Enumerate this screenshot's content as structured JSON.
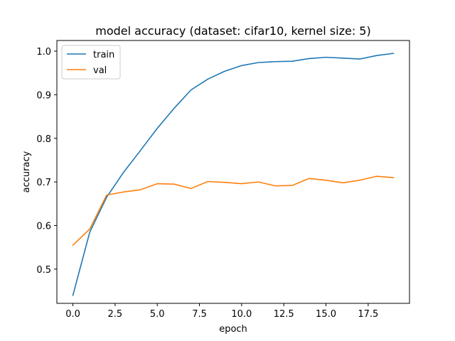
{
  "chart_data": {
    "type": "line",
    "title": "model accuracy (dataset: cifar10, kernel size: 5)",
    "xlabel": "epoch",
    "ylabel": "accuracy",
    "xlim": [
      -0.95,
      19.95
    ],
    "ylim": [
      0.4215,
      1.0245
    ],
    "xticks": [
      0.0,
      2.5,
      5.0,
      7.5,
      10.0,
      12.5,
      15.0,
      17.5
    ],
    "xtick_labels": [
      "0.0",
      "2.5",
      "5.0",
      "7.5",
      "10.0",
      "12.5",
      "15.0",
      "17.5"
    ],
    "yticks": [
      0.5,
      0.6,
      0.7,
      0.8,
      0.9,
      1.0
    ],
    "ytick_labels": [
      "0.5",
      "0.6",
      "0.7",
      "0.8",
      "0.9",
      "1.0"
    ],
    "grid": false,
    "legend_position": "top-left",
    "x": [
      0,
      1,
      2,
      3,
      4,
      5,
      6,
      7,
      8,
      9,
      10,
      11,
      12,
      13,
      14,
      15,
      16,
      17,
      18,
      19
    ],
    "series": [
      {
        "name": "train",
        "color": "#1f77b4",
        "values": [
          0.44,
          0.585,
          0.665,
          0.722,
          0.772,
          0.823,
          0.869,
          0.911,
          0.936,
          0.954,
          0.967,
          0.974,
          0.976,
          0.977,
          0.983,
          0.986,
          0.984,
          0.982,
          0.99,
          0.995
        ]
      },
      {
        "name": "val",
        "color": "#ff7f0e",
        "values": [
          0.555,
          0.592,
          0.67,
          0.677,
          0.682,
          0.696,
          0.695,
          0.685,
          0.701,
          0.699,
          0.696,
          0.7,
          0.691,
          0.692,
          0.708,
          0.704,
          0.698,
          0.704,
          0.713,
          0.71
        ]
      }
    ]
  }
}
